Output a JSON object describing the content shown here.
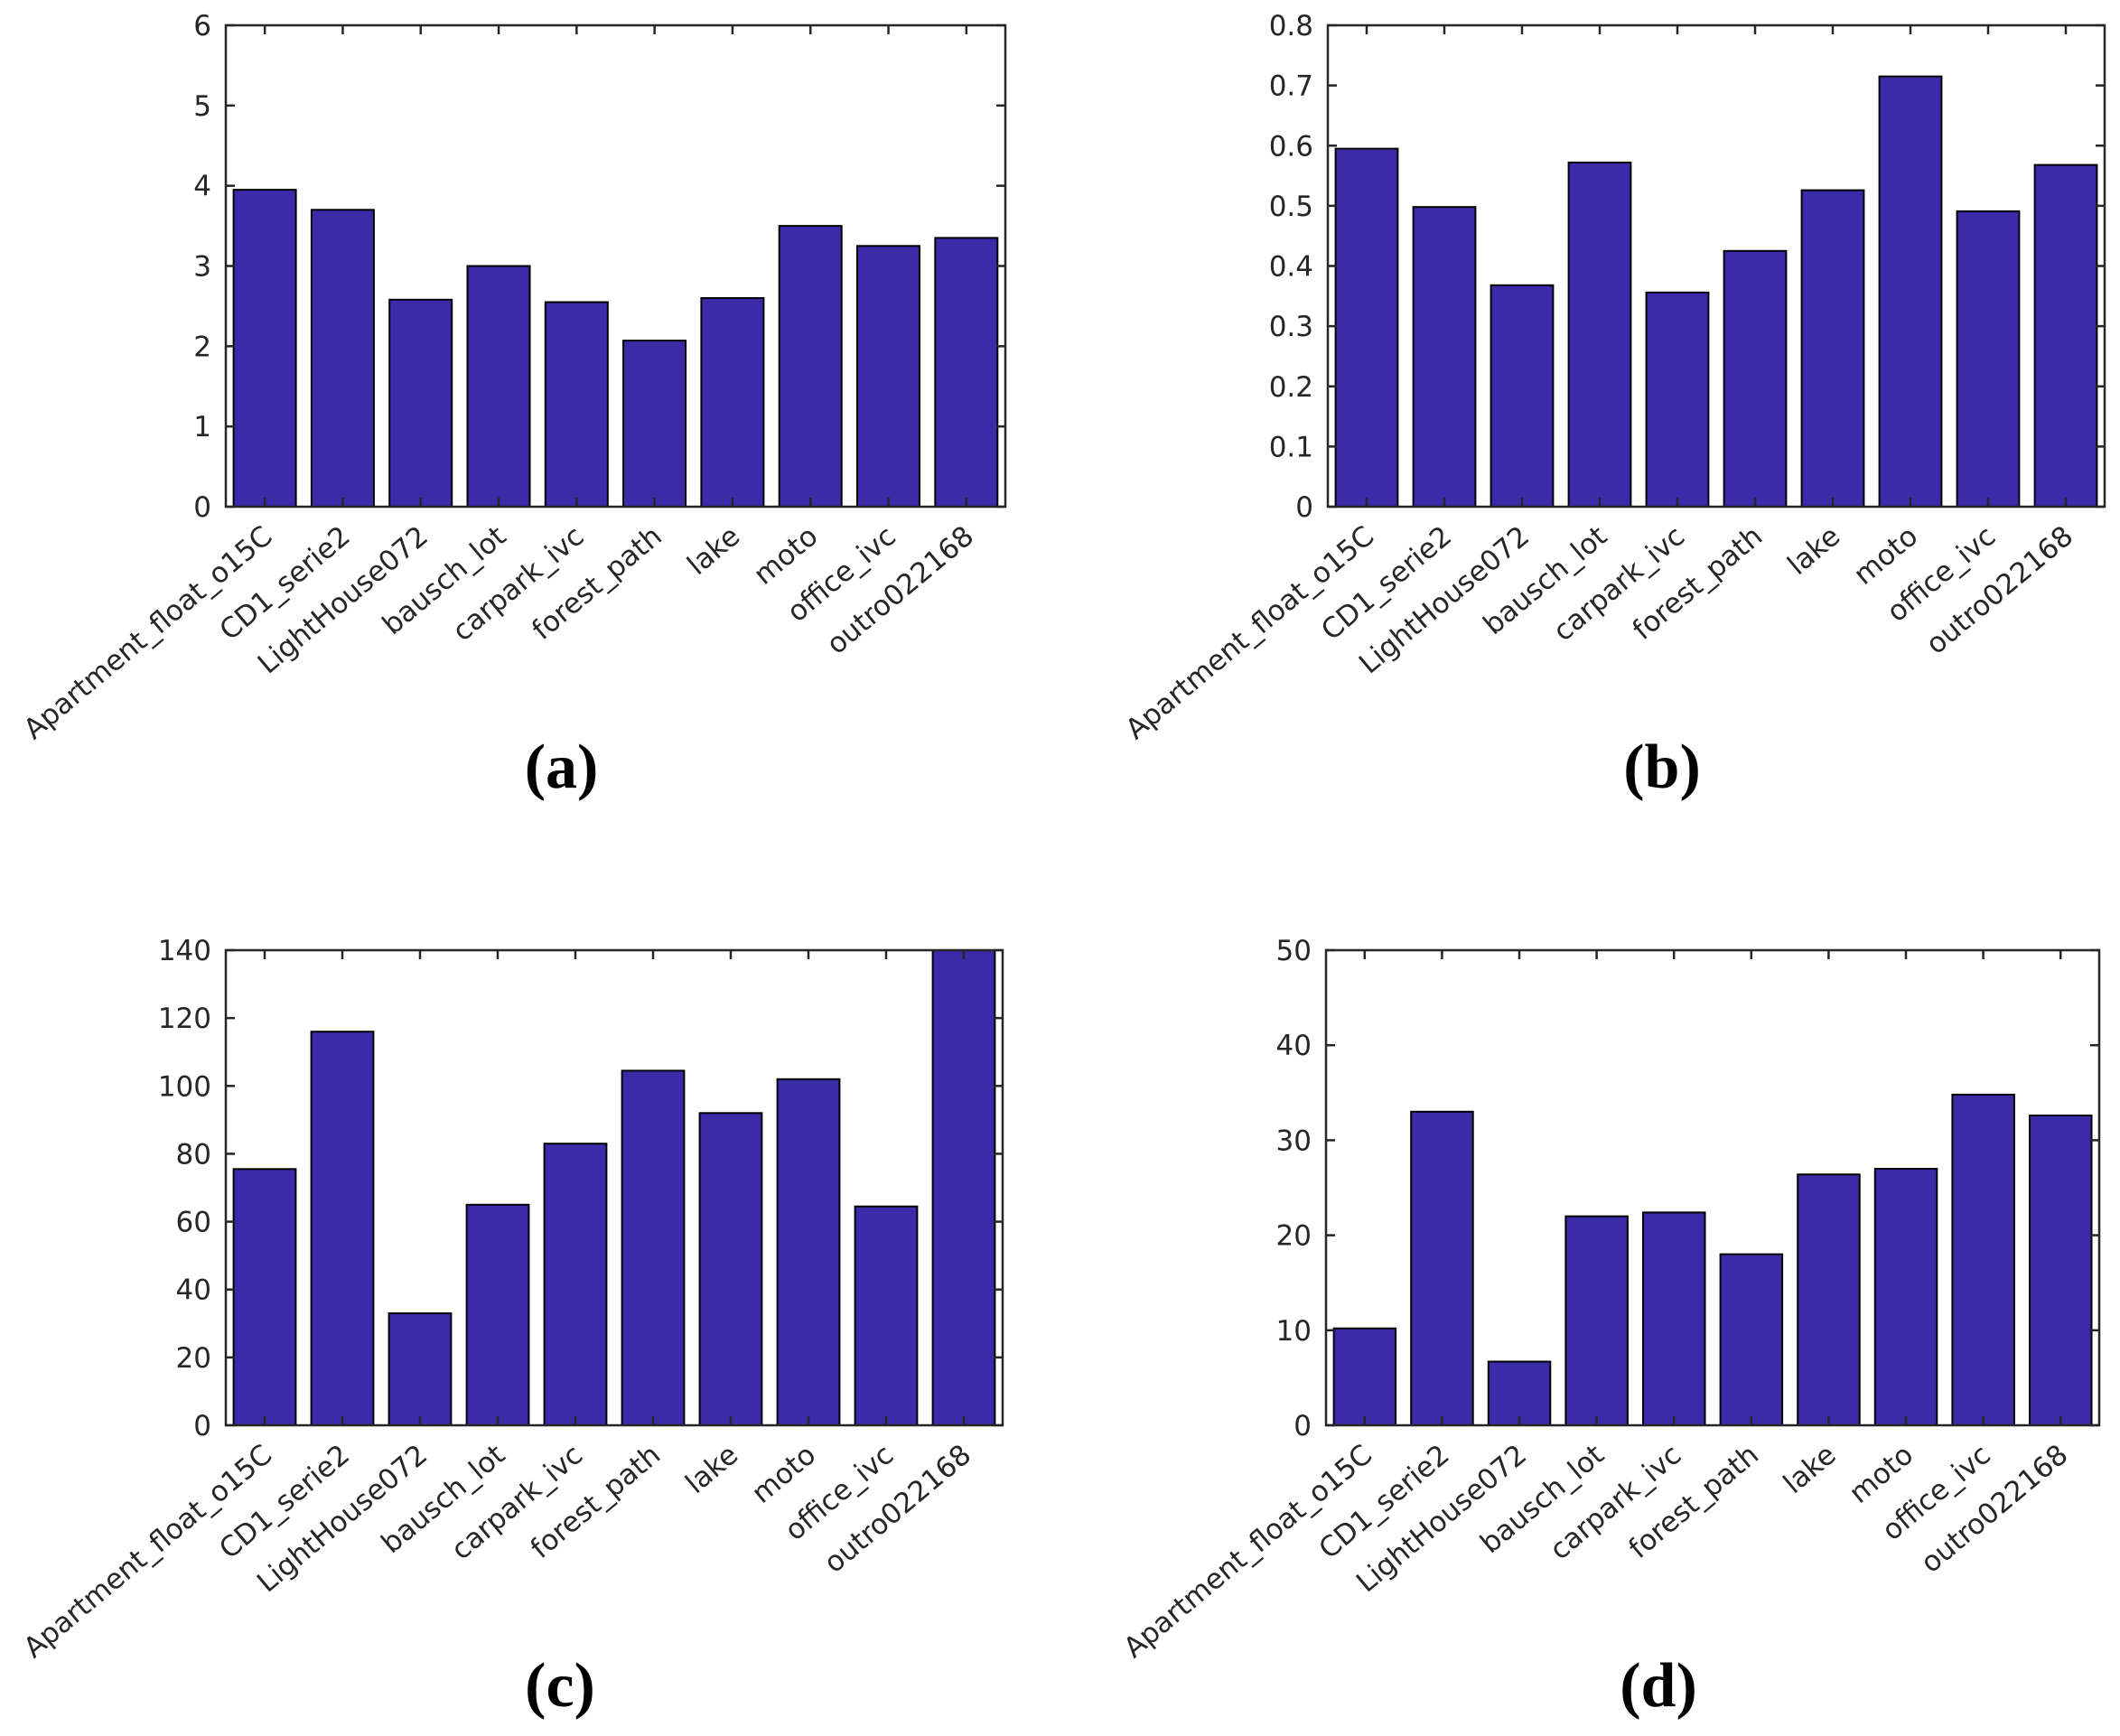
{
  "figure": {
    "background": "#ffffff",
    "bar_color": "#3b2ba8",
    "bar_edge_color": "#000000",
    "axis_color": "#262626",
    "tick_label_color": "#262626"
  },
  "chart_data": [
    {
      "type": "bar",
      "panel": "(a)",
      "title": "",
      "xlabel": "",
      "ylabel": "",
      "categories": [
        "Apartment_float_o15C",
        "CD1_serie2",
        "LightHouse072",
        "bausch_lot",
        "carpark_ivc",
        "forest_path",
        "lake",
        "moto",
        "office_ivc",
        "outro022168"
      ],
      "values": [
        3.95,
        3.7,
        2.58,
        3.0,
        2.55,
        2.07,
        2.6,
        3.5,
        3.25,
        3.35
      ],
      "ylim": [
        0,
        6
      ],
      "yticks": [
        0,
        1,
        2,
        3,
        4,
        5,
        6
      ],
      "ytick_labels": [
        "0",
        "1",
        "2",
        "3",
        "4",
        "5",
        "6"
      ],
      "grid": false,
      "legend": null,
      "bar_color": "#3b2ba8",
      "bar_edge_color": "#000000",
      "axis_color": "#262626",
      "xtick_rotation_deg": -40
    },
    {
      "type": "bar",
      "panel": "(b)",
      "title": "",
      "xlabel": "",
      "ylabel": "",
      "categories": [
        "Apartment_float_o15C",
        "CD1_serie2",
        "LightHouse072",
        "bausch_lot",
        "carpark_ivc",
        "forest_path",
        "lake",
        "moto",
        "office_ivc",
        "outro022168"
      ],
      "values": [
        0.595,
        0.498,
        0.368,
        0.572,
        0.356,
        0.425,
        0.526,
        0.715,
        0.491,
        0.568
      ],
      "ylim": [
        0,
        0.8
      ],
      "yticks": [
        0,
        0.1,
        0.2,
        0.3,
        0.4,
        0.5,
        0.6,
        0.7,
        0.8
      ],
      "ytick_labels": [
        "0",
        "0.1",
        "0.2",
        "0.3",
        "0.4",
        "0.5",
        "0.6",
        "0.7",
        "0.8"
      ],
      "grid": false,
      "legend": null,
      "bar_color": "#3b2ba8",
      "bar_edge_color": "#000000",
      "axis_color": "#262626",
      "xtick_rotation_deg": -40
    },
    {
      "type": "bar",
      "panel": "(c)",
      "title": "",
      "xlabel": "",
      "ylabel": "",
      "categories": [
        "Apartment_float_o15C",
        "CD1_serie2",
        "LightHouse072",
        "bausch_lot",
        "carpark_ivc",
        "forest_path",
        "lake",
        "moto",
        "office_ivc",
        "outro022168"
      ],
      "values": [
        75.5,
        116,
        33,
        65,
        83,
        104.5,
        92,
        102,
        64.5,
        140
      ],
      "ylim": [
        0,
        140
      ],
      "yticks": [
        0,
        20,
        40,
        60,
        80,
        100,
        120,
        140
      ],
      "ytick_labels": [
        "0",
        "20",
        "40",
        "60",
        "80",
        "100",
        "120",
        "140"
      ],
      "grid": false,
      "legend": null,
      "bar_color": "#3b2ba8",
      "bar_edge_color": "#000000",
      "axis_color": "#262626",
      "xtick_rotation_deg": -40
    },
    {
      "type": "bar",
      "panel": "(d)",
      "title": "",
      "xlabel": "",
      "ylabel": "",
      "categories": [
        "Apartment_float_o15C",
        "CD1_serie2",
        "LightHouse072",
        "bausch_lot",
        "carpark_ivc",
        "forest_path",
        "lake",
        "moto",
        "office_ivc",
        "outro022168"
      ],
      "values": [
        10.2,
        33,
        6.7,
        22,
        22.4,
        18,
        26.4,
        27,
        34.8,
        32.6
      ],
      "ylim": [
        0,
        50
      ],
      "yticks": [
        0,
        10,
        20,
        30,
        40,
        50
      ],
      "ytick_labels": [
        "0",
        "10",
        "20",
        "30",
        "40",
        "50"
      ],
      "grid": false,
      "legend": null,
      "bar_color": "#3b2ba8",
      "bar_edge_color": "#000000",
      "axis_color": "#262626",
      "xtick_rotation_deg": -40
    }
  ]
}
